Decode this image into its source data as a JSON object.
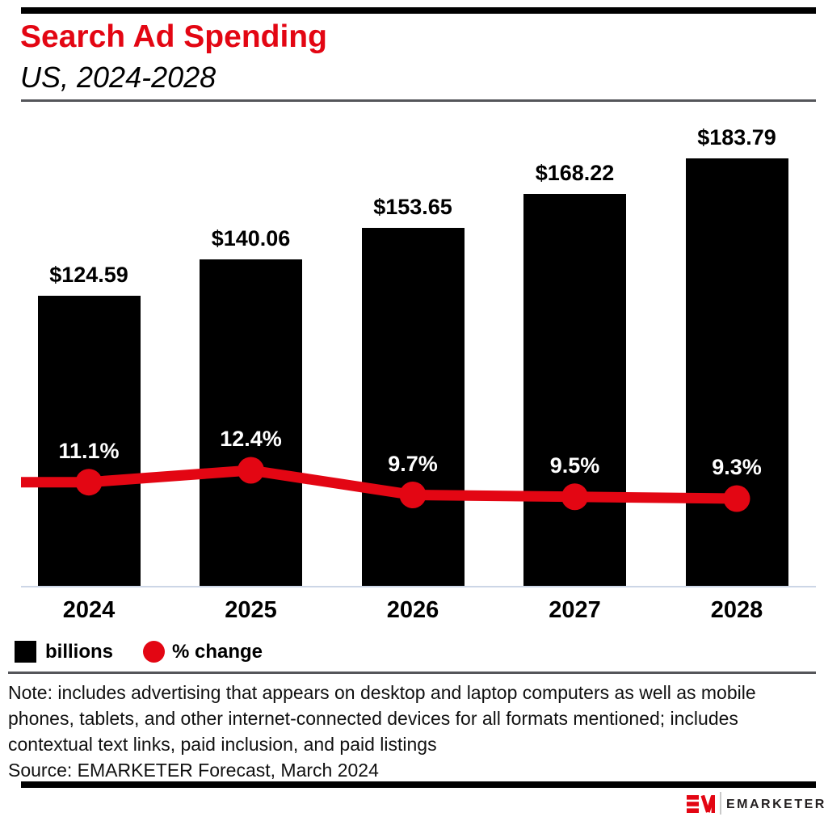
{
  "header": {
    "title": "Search Ad Spending",
    "subtitle": "US, 2024-2028"
  },
  "chart_data": {
    "type": "combo-bar-line",
    "title": "Search Ad Spending",
    "subtitle": "US, 2024-2028",
    "categories": [
      "2024",
      "2025",
      "2026",
      "2027",
      "2028"
    ],
    "series": [
      {
        "name": "billions",
        "type": "bar",
        "color": "#000000",
        "unit": "US$ billions",
        "values": [
          124.59,
          140.06,
          153.65,
          168.22,
          183.79
        ],
        "labels": [
          "$124.59",
          "$140.06",
          "$153.65",
          "$168.22",
          "$183.79"
        ]
      },
      {
        "name": "% change",
        "type": "line",
        "color": "#e30613",
        "unit": "%",
        "values": [
          11.1,
          12.4,
          9.7,
          9.5,
          9.3
        ],
        "labels": [
          "11.1%",
          "12.4%",
          "9.7%",
          "9.5%",
          "9.3%"
        ]
      }
    ],
    "axes": {
      "y_axis_visible": false,
      "gridlines": false,
      "bar_axis_range": [
        0,
        200
      ],
      "line_axis_range_pct": [
        4,
        16
      ],
      "baseline_color": "#ccd6e6"
    },
    "legend_position": "bottom-left"
  },
  "legend": {
    "items": [
      {
        "label": "billions",
        "swatch": "square",
        "color": "#000000"
      },
      {
        "label": "% change",
        "swatch": "circle",
        "color": "#e30613"
      }
    ]
  },
  "note": {
    "lines": [
      "Note: includes advertising that appears on desktop and laptop computers as well as mobile",
      "phones, tablets, and other internet-connected devices for all formats mentioned; includes",
      "contextual text links, paid inclusion, and paid listings"
    ]
  },
  "source": "Source: EMARKETER Forecast, March 2024",
  "logo": {
    "brand": "EMARKETER",
    "monogram": "EM"
  },
  "colors": {
    "accent_red": "#e30613",
    "bar_black": "#000000",
    "divider_gray": "#55565a",
    "baseline_gray": "#ccd6e6",
    "pct_label_white": "#ffffff",
    "note_text": "#111111",
    "logo_text": "#231f20",
    "logo_divider": "#c9c9c9"
  }
}
